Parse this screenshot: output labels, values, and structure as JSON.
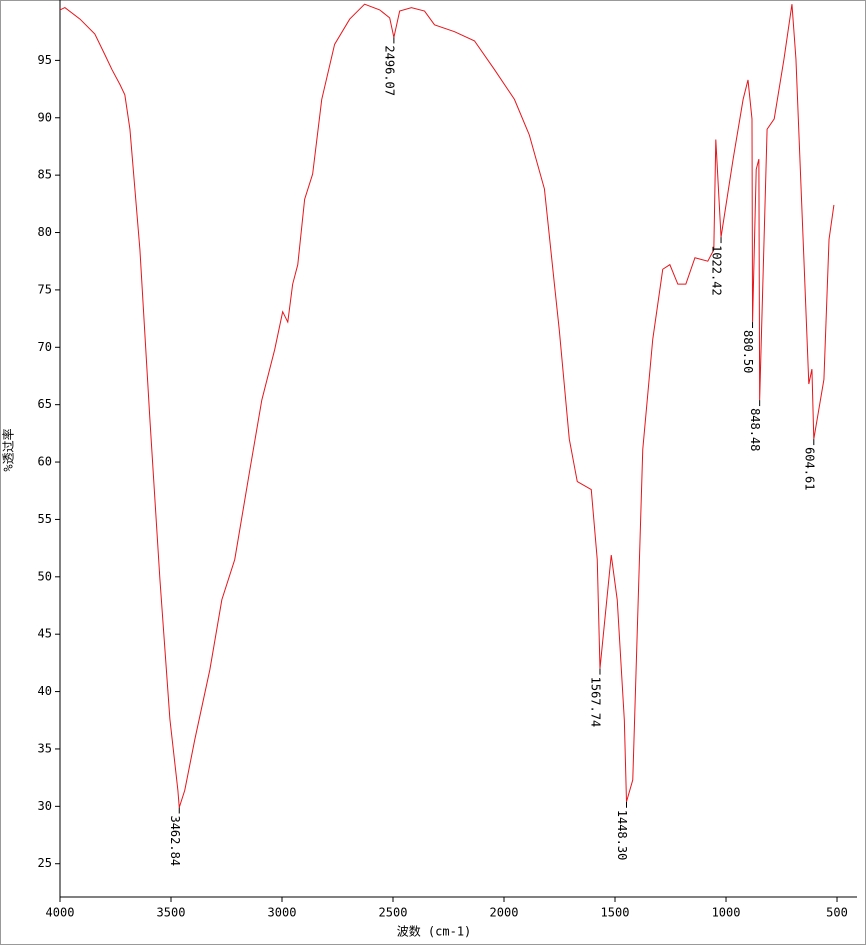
{
  "chart_data": {
    "type": "line",
    "xlabel": "波数 (cm-1)",
    "ylabel": "%透过率",
    "xlim": [
      4000,
      410
    ],
    "ylim": [
      22.1,
      100
    ],
    "xticks": [
      4000,
      3500,
      3000,
      2500,
      2000,
      1500,
      1000,
      500
    ],
    "yticks": [
      25,
      30,
      35,
      40,
      45,
      50,
      55,
      60,
      65,
      70,
      75,
      80,
      85,
      90,
      95
    ],
    "x": [
      4000,
      3978,
      3910,
      3843,
      3798,
      3766,
      3730,
      3708,
      3685,
      3640,
      3595,
      3550,
      3505,
      3469,
      3462.84,
      3438,
      3393,
      3325,
      3271,
      3213,
      3145,
      3091,
      3033,
      2997,
      2974,
      2952,
      2929,
      2898,
      2862,
      2821,
      2763,
      2695,
      2628,
      2560,
      2515,
      2496.07,
      2470,
      2417,
      2358,
      2313,
      2223,
      2133,
      2043,
      1953,
      1886,
      1818,
      1773,
      1751,
      1706,
      1670,
      1607,
      1580,
      1567.74,
      1517,
      1490,
      1458,
      1448.3,
      1420,
      1375,
      1330,
      1285,
      1253,
      1217,
      1181,
      1140,
      1082,
      1055,
      1046,
      1022.42,
      968,
      923,
      901,
      883,
      880.5,
      864,
      852,
      848.48,
      815,
      783,
      739,
      703,
      685,
      649,
      627,
      613,
      604.61,
      559,
      536,
      514
    ],
    "series": [
      {
        "color": "#e8141a",
        "values": [
          99.4,
          99.6,
          98.6,
          97.3,
          95.5,
          94.2,
          92.9,
          92.0,
          89.0,
          78.5,
          63.7,
          49.8,
          37.6,
          31.4,
          29.9,
          31.4,
          35.8,
          41.9,
          48.0,
          51.5,
          59.3,
          65.4,
          69.8,
          73.1,
          72.2,
          75.5,
          77.2,
          82.9,
          85.1,
          91.6,
          96.4,
          98.6,
          99.9,
          99.4,
          98.7,
          97.0,
          99.3,
          99.6,
          99.3,
          98.1,
          97.5,
          96.7,
          94.2,
          91.6,
          88.5,
          83.8,
          75.5,
          71.5,
          62.0,
          58.3,
          57.6,
          51.5,
          42.0,
          51.9,
          48.0,
          37.5,
          30.4,
          32.3,
          61.1,
          70.7,
          76.8,
          77.2,
          75.5,
          75.5,
          77.8,
          77.5,
          78.5,
          88.1,
          79.6,
          86.4,
          91.6,
          93.3,
          89.9,
          72.2,
          85.5,
          86.4,
          65.4,
          89.0,
          89.9,
          95.1,
          99.9,
          95.1,
          77.6,
          66.8,
          68.1,
          62.0,
          67.2,
          79.4,
          82.4
        ]
      }
    ],
    "annotations": [
      {
        "x": 3462.84,
        "y": 29.9,
        "label": "3462.84"
      },
      {
        "x": 2496.07,
        "y": 97.0,
        "label": "2496.07"
      },
      {
        "x": 1567.74,
        "y": 42.0,
        "label": "1567.74"
      },
      {
        "x": 1448.3,
        "y": 30.4,
        "label": "1448.30"
      },
      {
        "x": 1022.42,
        "y": 79.6,
        "label": "1022.42"
      },
      {
        "x": 880.5,
        "y": 72.2,
        "label": "880.50"
      },
      {
        "x": 848.48,
        "y": 65.4,
        "label": "848.48"
      },
      {
        "x": 604.61,
        "y": 62.0,
        "label": "604.61"
      }
    ]
  }
}
